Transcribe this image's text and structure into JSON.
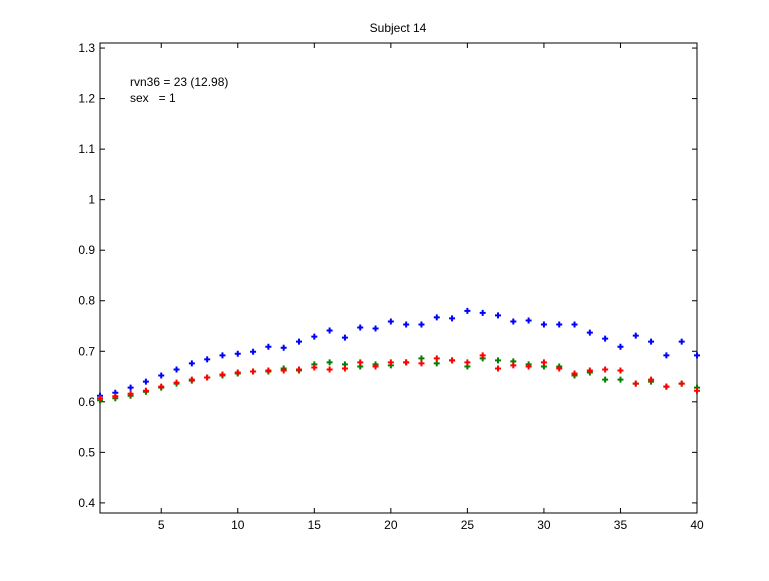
{
  "chart_data": {
    "type": "scatter",
    "title": "Subject 14",
    "xlabel": "",
    "ylabel": "",
    "xlim": [
      1,
      40
    ],
    "ylim": [
      0.38,
      1.31
    ],
    "xticks": [
      5,
      10,
      15,
      20,
      25,
      30,
      35,
      40
    ],
    "yticks": [
      0.4,
      0.5,
      0.6,
      0.7,
      0.8,
      0.9,
      1,
      1.1,
      1.2,
      1.3
    ],
    "ytick_labels": [
      "0.4",
      "0.5",
      "0.6",
      "0.7",
      "0.8",
      "0.9",
      "1",
      "1.1",
      "1.2",
      "1.3"
    ],
    "grid": false,
    "marker": "plus",
    "annotations": [
      "rvn36 = 23 (12.98)",
      "sex   = 1"
    ],
    "x": [
      1,
      2,
      3,
      4,
      5,
      6,
      7,
      8,
      9,
      10,
      11,
      12,
      13,
      14,
      15,
      16,
      17,
      18,
      19,
      20,
      21,
      22,
      23,
      24,
      25,
      26,
      27,
      28,
      29,
      30,
      31,
      32,
      33,
      34,
      35,
      36,
      37,
      38,
      39,
      40
    ],
    "series": [
      {
        "color": "#0000ff",
        "values": [
          0.612,
          0.618,
          0.628,
          0.64,
          0.652,
          0.664,
          0.676,
          0.684,
          0.692,
          0.695,
          0.699,
          0.709,
          0.707,
          0.719,
          0.729,
          0.741,
          0.727,
          0.747,
          0.745,
          0.759,
          0.753,
          0.753,
          0.767,
          0.765,
          0.78,
          0.776,
          0.771,
          0.759,
          0.761,
          0.753,
          0.753,
          0.753,
          0.737,
          0.725,
          0.709,
          0.731,
          0.719,
          0.692,
          0.719,
          0.692
        ]
      },
      {
        "color": "#008000",
        "values": [
          0.603,
          0.607,
          0.612,
          0.62,
          0.628,
          0.636,
          0.642,
          0.648,
          0.652,
          0.656,
          0.66,
          0.66,
          0.666,
          0.662,
          0.674,
          0.678,
          0.674,
          0.67,
          0.674,
          0.672,
          0.678,
          0.686,
          0.676,
          0.682,
          0.67,
          0.686,
          0.682,
          0.68,
          0.674,
          0.67,
          0.67,
          0.652,
          0.658,
          0.644,
          0.644,
          0.636,
          0.64,
          0.63,
          0.636,
          0.628
        ]
      },
      {
        "color": "#ff0000",
        "values": [
          0.607,
          0.611,
          0.616,
          0.622,
          0.63,
          0.638,
          0.644,
          0.648,
          0.654,
          0.658,
          0.66,
          0.662,
          0.662,
          0.664,
          0.668,
          0.664,
          0.666,
          0.678,
          0.67,
          0.678,
          0.678,
          0.676,
          0.686,
          0.682,
          0.678,
          0.692,
          0.666,
          0.672,
          0.67,
          0.678,
          0.666,
          0.656,
          0.662,
          0.664,
          0.662,
          0.636,
          0.644,
          0.63,
          0.636,
          0.622
        ]
      }
    ]
  }
}
